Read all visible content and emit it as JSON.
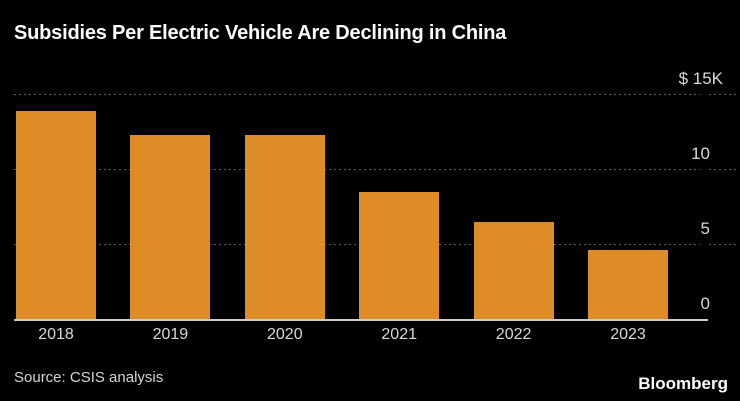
{
  "title": "Subsidies Per Electric Vehicle Are Declining in China",
  "source": "Source: CSIS analysis",
  "brand": "Bloomberg",
  "colors": {
    "background": "#000000",
    "bar": "#DE8D26",
    "title_text": "#FFFFFF",
    "axis_text": "#D9D9D9",
    "gridline": "#5E5E5E",
    "baseline": "#CCCCCC"
  },
  "chart_data": {
    "type": "bar",
    "title": "Subsidies Per Electric Vehicle Are Declining in China",
    "categories": [
      "2018",
      "2019",
      "2020",
      "2021",
      "2022",
      "2023"
    ],
    "values": [
      13.9,
      12.3,
      12.3,
      8.5,
      6.5,
      4.6
    ],
    "xlabel": "",
    "ylabel": "",
    "ylim": [
      0,
      15
    ],
    "yticks": [
      {
        "value": 15,
        "label": "$ 15K"
      },
      {
        "value": 10,
        "label": "10"
      },
      {
        "value": 5,
        "label": "5"
      },
      {
        "value": 0,
        "label": "0"
      }
    ],
    "grid": "horizontal-dotted",
    "legend": "none"
  }
}
